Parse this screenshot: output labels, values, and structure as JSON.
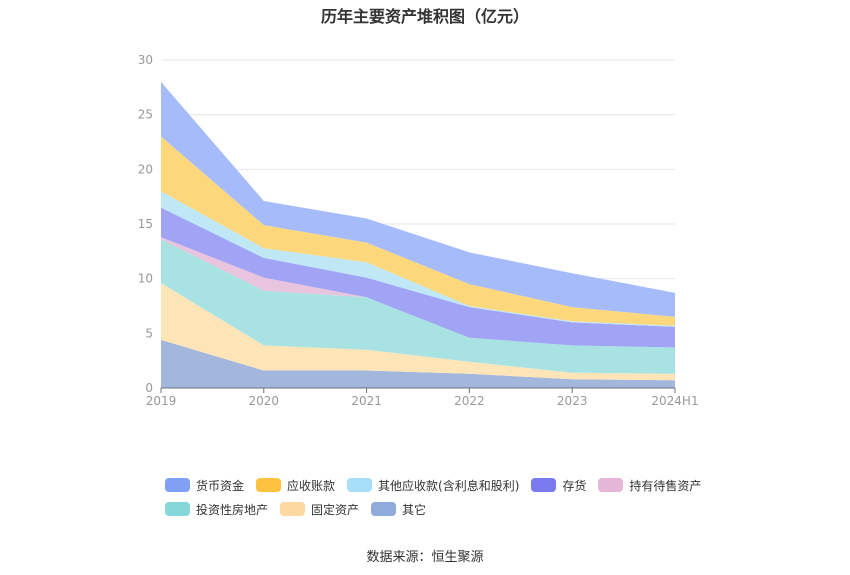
{
  "chart_data": {
    "type": "area",
    "stacked": true,
    "title": "历年主要资产堆积图（亿元）",
    "categories": [
      "2019",
      "2020",
      "2021",
      "2022",
      "2023",
      "2024H1"
    ],
    "ylim": [
      0,
      30
    ],
    "yticks": [
      0,
      5,
      10,
      15,
      20,
      25,
      30
    ],
    "grid": true,
    "legend_position": "bottom",
    "series": [
      {
        "name": "其它",
        "color": "#a3b7dd",
        "values": [
          4.4,
          1.6,
          1.6,
          1.3,
          0.8,
          0.7
        ]
      },
      {
        "name": "固定资产",
        "color": "#fde5b8",
        "values": [
          5.2,
          2.3,
          1.9,
          1.1,
          0.6,
          0.6
        ]
      },
      {
        "name": "投资性房地产",
        "color": "#a8e2e2",
        "values": [
          4.0,
          5.0,
          4.8,
          2.2,
          2.5,
          2.4
        ]
      },
      {
        "name": "持有待售资产",
        "color": "#e9c4df",
        "values": [
          0.2,
          1.2,
          0.0,
          0.0,
          0.0,
          0.0
        ]
      },
      {
        "name": "存货",
        "color": "#a1a3f4",
        "values": [
          2.7,
          1.8,
          1.8,
          2.8,
          2.1,
          1.9
        ]
      },
      {
        "name": "其他应收款(含利息和股利)",
        "color": "#bfe7f6",
        "values": [
          1.5,
          0.9,
          1.4,
          0.1,
          0.1,
          0.1
        ]
      },
      {
        "name": "应收账款",
        "color": "#fdd77b",
        "values": [
          5.0,
          2.1,
          1.8,
          2.0,
          1.3,
          0.8
        ]
      },
      {
        "name": "货币资金",
        "color": "#a6bcfa",
        "values": [
          5.0,
          2.2,
          2.2,
          2.9,
          3.1,
          2.2
        ]
      }
    ]
  },
  "legend": {
    "row1": [
      {
        "label": "货币资金",
        "color": "#7fa0f4"
      },
      {
        "label": "应收账款",
        "color": "#fdc23f"
      },
      {
        "label": "其他应收款(含利息和股利)",
        "color": "#a6dff7"
      },
      {
        "label": "存货",
        "color": "#7a79ee"
      },
      {
        "label": "持有待售资产",
        "color": "#e6b6d8"
      }
    ],
    "row2": [
      {
        "label": "投资性房地产",
        "color": "#86d8d8"
      },
      {
        "label": "固定资产",
        "color": "#fdd9a1"
      },
      {
        "label": "其它",
        "color": "#8eabdb"
      }
    ]
  },
  "source": "数据来源：恒生聚源"
}
